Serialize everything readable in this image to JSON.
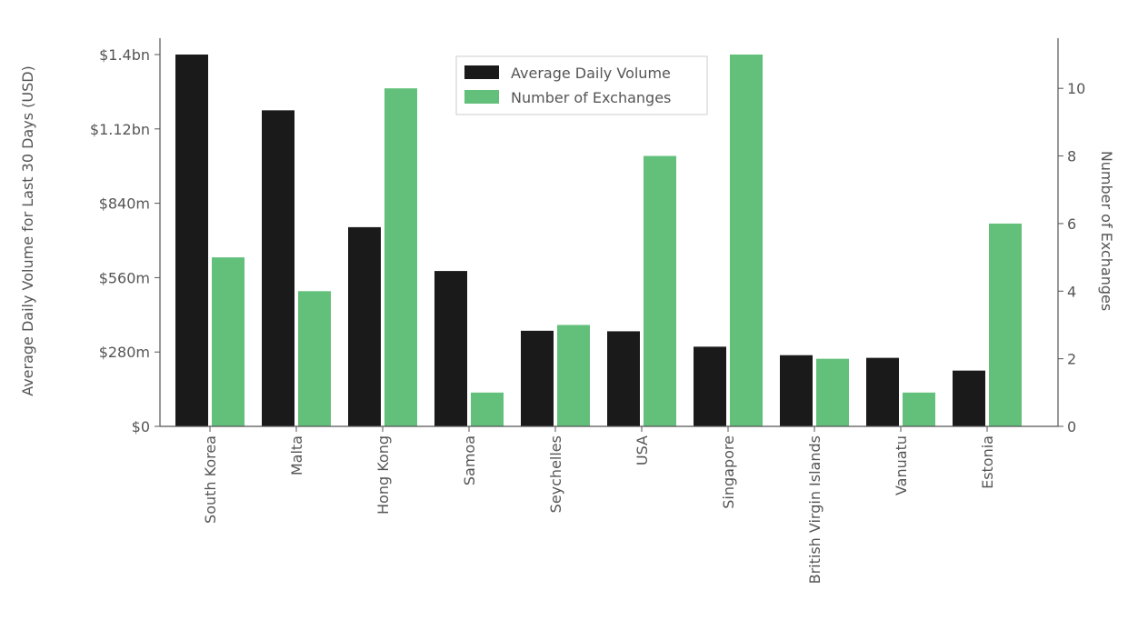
{
  "chart_data": {
    "type": "bar",
    "title": "",
    "categories": [
      "South Korea",
      "Malta",
      "Hong Kong",
      "Samoa",
      "Seychelles",
      "USA",
      "Singapore",
      "British Virgin Islands",
      "Vanuatu",
      "Estonia"
    ],
    "series": [
      {
        "name": "Average Daily Volume",
        "axis": "left",
        "color": "#1a1a1a",
        "values": [
          1400000000,
          1190000000,
          750000000,
          585000000,
          360000000,
          358000000,
          300000000,
          268000000,
          258000000,
          210000000
        ]
      },
      {
        "name": "Number of Exchanges",
        "axis": "right",
        "color": "#62c07b",
        "values": [
          5,
          4,
          10,
          1,
          3,
          8,
          11,
          2,
          1,
          6
        ]
      }
    ],
    "y_left": {
      "label": "Average Daily Volume for Last 30 Days (USD)",
      "range": [
        0,
        1400000000
      ],
      "ticks": [
        {
          "value": 0,
          "label": "$0"
        },
        {
          "value": 280000000,
          "label": "$280m"
        },
        {
          "value": 560000000,
          "label": "$560m"
        },
        {
          "value": 840000000,
          "label": "$840m"
        },
        {
          "value": 1120000000,
          "label": "$1.12bn"
        },
        {
          "value": 1400000000,
          "label": "$1.4bn"
        }
      ]
    },
    "y_right": {
      "label": "Number of Exchanges",
      "range": [
        0,
        11
      ],
      "ticks": [
        {
          "value": 0,
          "label": "0"
        },
        {
          "value": 2,
          "label": "2"
        },
        {
          "value": 4,
          "label": "4"
        },
        {
          "value": 6,
          "label": "6"
        },
        {
          "value": 8,
          "label": "8"
        },
        {
          "value": 10,
          "label": "10"
        }
      ]
    },
    "xlabel": "",
    "grid": false,
    "legend": {
      "position": "top-center",
      "entries": [
        "Average Daily Volume",
        "Number of Exchanges"
      ]
    }
  }
}
